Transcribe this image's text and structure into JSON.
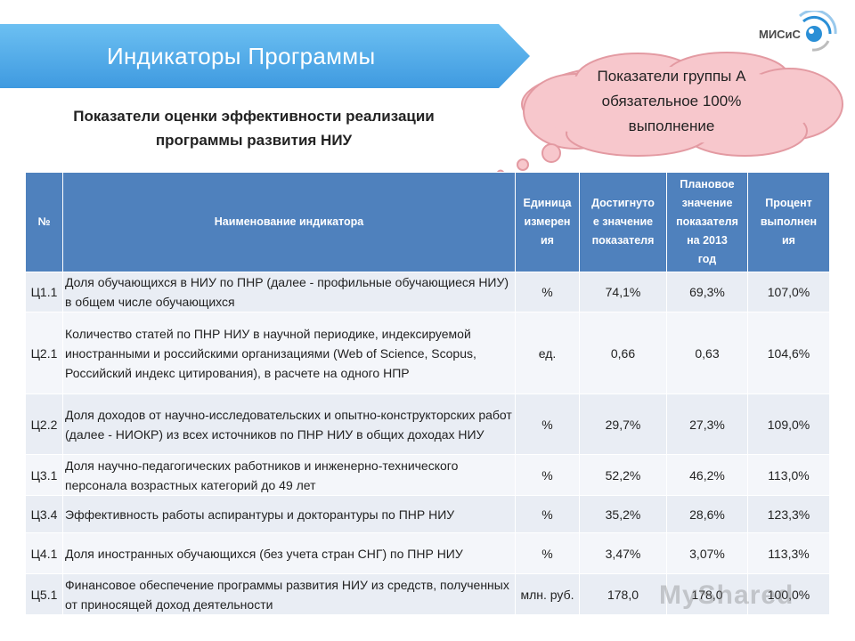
{
  "header": {
    "title": "Индикаторы Программы"
  },
  "logo": {
    "text": "МИСиС"
  },
  "subtitle": {
    "line1": "Показатели оценки эффективности реализации",
    "line2": "программы развития НИУ"
  },
  "callout": {
    "line1": "Показатели группы А",
    "line2": "обязательное 100%",
    "line3": "выполнение"
  },
  "table": {
    "headers": {
      "num": "№",
      "name": "Наименование индикатора",
      "unit": [
        "Единица",
        "измерен",
        "ия"
      ],
      "achieved": [
        "Достигнуто",
        "е значение",
        "показателя"
      ],
      "planned": [
        "Плановое",
        "значение",
        "показателя",
        "на 2013",
        "год"
      ],
      "percent": [
        "Процент",
        "выполнен",
        "ия"
      ]
    },
    "rows": [
      {
        "code": "Ц1.1",
        "name": "Доля обучающихся в НИУ по ПНР (далее - профильные обучающиеся НИУ) в общем числе обучающихся",
        "unit": "%",
        "achieved": "74,1%",
        "planned": "69,3%",
        "percent": "107,0%"
      },
      {
        "code": "Ц2.1",
        "name": "Количество статей по ПНР НИУ в научной периодике, индексируемой иностранными и российскими организациями (Web of Science, Scopus, Российский индекс цитирования), в расчете на одного НПР",
        "unit": "ед.",
        "achieved": "0,66",
        "planned": "0,63",
        "percent": "104,6%"
      },
      {
        "code": "Ц2.2",
        "name": "Доля доходов от научно-исследовательских и опытно-конструкторских работ (далее - НИОКР) из всех источников по ПНР НИУ в общих доходах НИУ",
        "unit": "%",
        "achieved": "29,7%",
        "planned": "27,3%",
        "percent": "109,0%"
      },
      {
        "code": "Ц3.1",
        "name": "Доля научно-педагогических работников и инженерно-технического персонала возрастных категорий  до 49 лет",
        "unit": "%",
        "achieved": "52,2%",
        "planned": "46,2%",
        "percent": "113,0%"
      },
      {
        "code": "Ц3.4",
        "name": "Эффективность работы аспирантуры и докторантуры по ПНР НИУ",
        "unit": "%",
        "achieved": "35,2%",
        "planned": "28,6%",
        "percent": "123,3%"
      },
      {
        "code": "Ц4.1",
        "name": "Доля иностранных обучающихся (без учета стран СНГ) по ПНР НИУ",
        "unit": "%",
        "achieved": "3,47%",
        "planned": "3,07%",
        "percent": "113,3%"
      },
      {
        "code": "Ц5.1",
        "name": "Финансовое обеспечение программы развития НИУ из средств, полученных от приносящей доход деятельности",
        "unit": "млн. руб.",
        "achieved": "178,0",
        "planned": "178,0",
        "percent": "100,0%"
      }
    ]
  },
  "watermark": "MyShared",
  "colors": {
    "banner": "#5aaee8",
    "table_header": "#4f81bd",
    "row_odd": "#e9edf4",
    "row_even": "#f4f6fa",
    "cloud_fill": "#f7c7cc",
    "cloud_stroke": "#e39aa2"
  }
}
